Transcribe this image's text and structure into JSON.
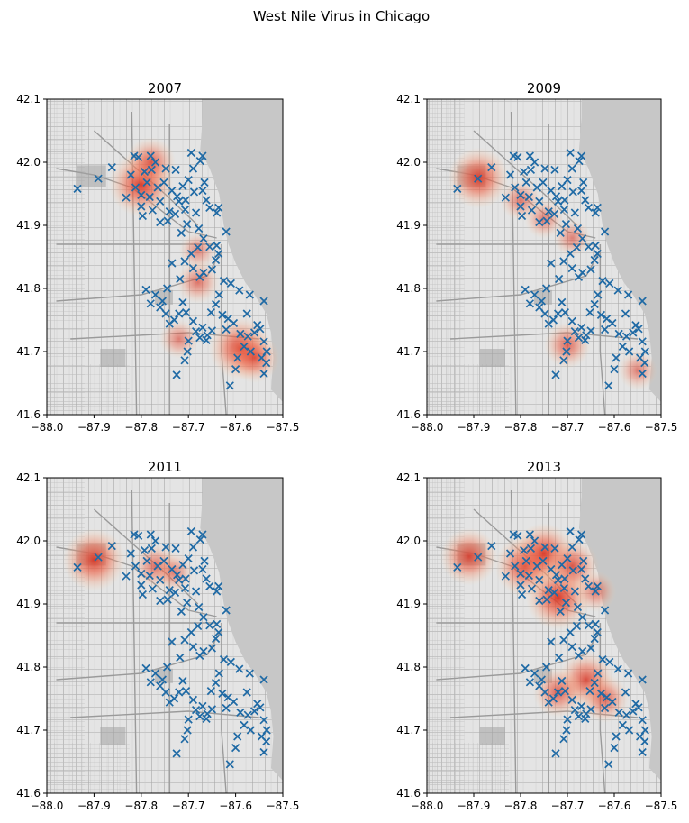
{
  "figure": {
    "title": "West Nile Virus in Chicago"
  },
  "colors": {
    "marker": "#1f6aa5",
    "heat": "#d7301f",
    "water": "#c7c7c7",
    "land": "#e4e4e4",
    "roads": "#9a9a9a"
  },
  "chart_data": [
    {
      "type": "scatter",
      "title": "2007",
      "xlim": [
        -88.0,
        -87.5
      ],
      "ylim": [
        41.6,
        42.1
      ],
      "xticks": [
        "−88.0",
        "−87.9",
        "−87.8",
        "−87.7",
        "−87.6",
        "−87.5"
      ],
      "yticks": [
        "41.6",
        "41.7",
        "41.8",
        "41.9",
        "42.0",
        "42.1"
      ],
      "overlay": "heatmap",
      "hotspots": [
        {
          "x": -87.8,
          "y": 41.965,
          "intensity": 1.0
        },
        {
          "x": -87.78,
          "y": 42.0,
          "intensity": 0.6
        },
        {
          "x": -87.59,
          "y": 41.705,
          "intensity": 0.95
        },
        {
          "x": -87.56,
          "y": 41.69,
          "intensity": 0.6
        },
        {
          "x": -87.68,
          "y": 41.81,
          "intensity": 0.4
        },
        {
          "x": -87.72,
          "y": 41.72,
          "intensity": 0.3
        },
        {
          "x": -87.68,
          "y": 41.86,
          "intensity": 0.25
        }
      ]
    },
    {
      "type": "scatter",
      "title": "2009",
      "xlim": [
        -88.0,
        -87.5
      ],
      "ylim": [
        41.6,
        42.1
      ],
      "xticks": [
        "−88.0",
        "−87.9",
        "−87.8",
        "−87.7",
        "−87.6",
        "−87.5"
      ],
      "yticks": [
        "41.6",
        "41.7",
        "41.8",
        "41.9",
        "42.0",
        "42.1"
      ],
      "overlay": "heatmap",
      "hotspots": [
        {
          "x": -87.89,
          "y": 41.975,
          "intensity": 0.9
        },
        {
          "x": -87.8,
          "y": 41.94,
          "intensity": 0.35
        },
        {
          "x": -87.75,
          "y": 41.91,
          "intensity": 0.3
        },
        {
          "x": -87.7,
          "y": 41.71,
          "intensity": 0.5
        },
        {
          "x": -87.69,
          "y": 41.88,
          "intensity": 0.25
        },
        {
          "x": -87.55,
          "y": 41.67,
          "intensity": 0.3
        }
      ]
    },
    {
      "type": "scatter",
      "title": "2011",
      "xlim": [
        -88.0,
        -87.5
      ],
      "ylim": [
        41.6,
        42.1
      ],
      "xticks": [
        "−88.0",
        "−87.9",
        "−87.8",
        "−87.7",
        "−87.6",
        "−87.5"
      ],
      "yticks": [
        "41.6",
        "41.7",
        "41.8",
        "41.9",
        "42.0",
        "42.1"
      ],
      "overlay": "heatmap",
      "hotspots": [
        {
          "x": -87.9,
          "y": 41.97,
          "intensity": 0.95
        },
        {
          "x": -87.77,
          "y": 41.96,
          "intensity": 0.45
        },
        {
          "x": -87.73,
          "y": 41.95,
          "intensity": 0.3
        }
      ]
    },
    {
      "type": "scatter",
      "title": "2013",
      "xlim": [
        -88.0,
        -87.5
      ],
      "ylim": [
        41.6,
        42.1
      ],
      "xticks": [
        "−88.0",
        "−87.9",
        "−87.8",
        "−87.7",
        "−87.6",
        "−87.5"
      ],
      "yticks": [
        "41.6",
        "41.7",
        "41.8",
        "41.9",
        "42.0",
        "42.1"
      ],
      "overlay": "heatmap",
      "hotspots": [
        {
          "x": -87.91,
          "y": 41.975,
          "intensity": 0.8
        },
        {
          "x": -87.79,
          "y": 41.96,
          "intensity": 0.9
        },
        {
          "x": -87.75,
          "y": 41.98,
          "intensity": 0.9
        },
        {
          "x": -87.72,
          "y": 41.91,
          "intensity": 1.0
        },
        {
          "x": -87.69,
          "y": 41.96,
          "intensity": 0.7
        },
        {
          "x": -87.66,
          "y": 41.78,
          "intensity": 0.75
        },
        {
          "x": -87.72,
          "y": 41.76,
          "intensity": 0.6
        },
        {
          "x": -87.62,
          "y": 41.75,
          "intensity": 0.55
        },
        {
          "x": -87.64,
          "y": 41.92,
          "intensity": 0.35
        }
      ]
    }
  ],
  "traps": [
    [
      -87.935,
      41.958
    ],
    [
      -87.891,
      41.974
    ],
    [
      -87.862,
      41.992
    ],
    [
      -87.832,
      41.944
    ],
    [
      -87.822,
      41.98
    ],
    [
      -87.815,
      42.01
    ],
    [
      -87.806,
      42.008
    ],
    [
      -87.812,
      41.96
    ],
    [
      -87.8,
      41.93
    ],
    [
      -87.797,
      41.915
    ],
    [
      -87.793,
      41.985
    ],
    [
      -87.788,
      41.968
    ],
    [
      -87.782,
      41.945
    ],
    [
      -87.78,
      42.01
    ],
    [
      -87.778,
      41.988
    ],
    [
      -87.776,
      41.924
    ],
    [
      -87.77,
      42.0
    ],
    [
      -87.765,
      41.96
    ],
    [
      -87.76,
      41.938
    ],
    [
      -87.752,
      41.968
    ],
    [
      -87.748,
      41.99
    ],
    [
      -87.744,
      41.907
    ],
    [
      -87.74,
      41.922
    ],
    [
      -87.735,
      41.955
    ],
    [
      -87.727,
      41.988
    ],
    [
      -87.724,
      41.946
    ],
    [
      -87.72,
      41.938
    ],
    [
      -87.715,
      41.888
    ],
    [
      -87.712,
      41.962
    ],
    [
      -87.707,
      41.925
    ],
    [
      -87.703,
      41.902
    ],
    [
      -87.7,
      41.972
    ],
    [
      -87.694,
      42.015
    ],
    [
      -87.69,
      41.99
    ],
    [
      -87.688,
      41.953
    ],
    [
      -87.684,
      41.92
    ],
    [
      -87.678,
      41.895
    ],
    [
      -87.675,
      42.002
    ],
    [
      -87.67,
      42.01
    ],
    [
      -87.666,
      41.968
    ],
    [
      -87.662,
      41.94
    ],
    [
      -87.655,
      41.928
    ],
    [
      -87.64,
      41.92
    ],
    [
      -87.636,
      41.928
    ],
    [
      -87.64,
      41.868
    ],
    [
      -87.655,
      41.866
    ],
    [
      -87.668,
      41.879
    ],
    [
      -87.68,
      41.865
    ],
    [
      -87.694,
      41.855
    ],
    [
      -87.708,
      41.843
    ],
    [
      -87.69,
      41.832
    ],
    [
      -87.676,
      41.818
    ],
    [
      -87.668,
      41.825
    ],
    [
      -87.65,
      41.83
    ],
    [
      -87.642,
      41.845
    ],
    [
      -87.636,
      41.855
    ],
    [
      -87.62,
      41.89
    ],
    [
      -87.625,
      41.812
    ],
    [
      -87.61,
      41.808
    ],
    [
      -87.592,
      41.797
    ],
    [
      -87.57,
      41.79
    ],
    [
      -87.54,
      41.78
    ],
    [
      -87.718,
      41.815
    ],
    [
      -87.735,
      41.84
    ],
    [
      -87.745,
      41.8
    ],
    [
      -87.755,
      41.78
    ],
    [
      -87.77,
      41.79
    ],
    [
      -87.79,
      41.798
    ],
    [
      -87.78,
      41.776
    ],
    [
      -87.76,
      41.77
    ],
    [
      -87.748,
      41.76
    ],
    [
      -87.74,
      41.744
    ],
    [
      -87.73,
      41.75
    ],
    [
      -87.72,
      41.76
    ],
    [
      -87.712,
      41.778
    ],
    [
      -87.705,
      41.762
    ],
    [
      -87.69,
      41.748
    ],
    [
      -87.684,
      41.732
    ],
    [
      -87.676,
      41.722
    ],
    [
      -87.67,
      41.738
    ],
    [
      -87.66,
      41.726
    ],
    [
      -87.652,
      41.762
    ],
    [
      -87.642,
      41.775
    ],
    [
      -87.635,
      41.79
    ],
    [
      -87.628,
      41.758
    ],
    [
      -87.616,
      41.752
    ],
    [
      -87.604,
      41.745
    ],
    [
      -87.59,
      41.728
    ],
    [
      -87.574,
      41.724
    ],
    [
      -87.56,
      41.73
    ],
    [
      -87.554,
      41.742
    ],
    [
      -87.548,
      41.736
    ],
    [
      -87.54,
      41.716
    ],
    [
      -87.534,
      41.7
    ],
    [
      -87.545,
      41.69
    ],
    [
      -87.54,
      41.665
    ],
    [
      -87.535,
      41.682
    ],
    [
      -87.568,
      41.7
    ],
    [
      -87.582,
      41.708
    ],
    [
      -87.596,
      41.69
    ],
    [
      -87.6,
      41.672
    ],
    [
      -87.612,
      41.646
    ],
    [
      -87.7,
      41.717
    ],
    [
      -87.702,
      41.7
    ],
    [
      -87.708,
      41.686
    ],
    [
      -87.725,
      41.663
    ],
    [
      -87.662,
      41.718
    ],
    [
      -87.65,
      41.733
    ],
    [
      -87.576,
      41.76
    ],
    [
      -87.62,
      41.735
    ],
    [
      -87.76,
      41.905
    ],
    [
      -87.728,
      41.918
    ],
    [
      -87.706,
      41.94
    ],
    [
      -87.67,
      41.955
    ],
    [
      -87.8,
      41.948
    ]
  ]
}
